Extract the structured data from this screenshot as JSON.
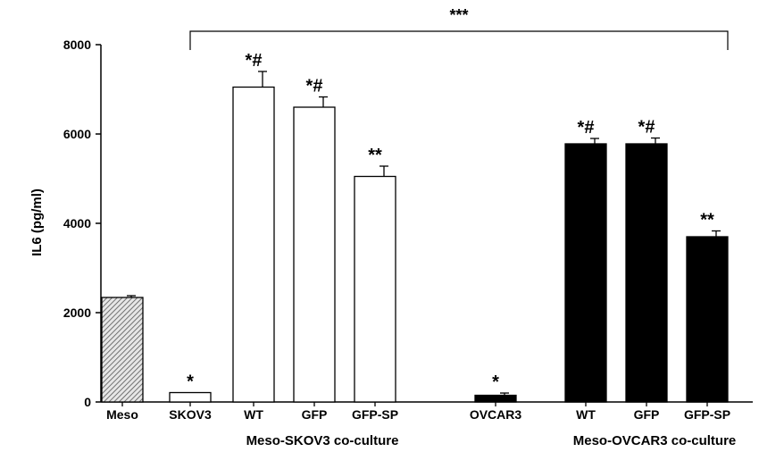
{
  "chart_data": {
    "type": "bar",
    "ylabel": "IL6 (pg/ml)",
    "xlabel": "",
    "ylim": [
      0,
      8000
    ],
    "yticks": [
      0,
      2000,
      4000,
      6000,
      8000
    ],
    "grid": false,
    "bars": [
      {
        "label": "Meso",
        "value": 2340,
        "error": 40,
        "style": "hatched",
        "annotation": ""
      },
      {
        "label": "SKOV3",
        "value": 210,
        "error": 0,
        "style": "white",
        "annotation": "*"
      },
      {
        "label": "WT",
        "value": 7050,
        "error": 350,
        "style": "white",
        "annotation": "*#"
      },
      {
        "label": "GFP",
        "value": 6600,
        "error": 230,
        "style": "white",
        "annotation": "*#"
      },
      {
        "label": "GFP-SP",
        "value": 5050,
        "error": 230,
        "style": "white",
        "annotation": "**"
      },
      {
        "label": "OVCAR3",
        "value": 150,
        "error": 50,
        "style": "black",
        "annotation": "*"
      },
      {
        "label": "WT",
        "value": 5780,
        "error": 120,
        "style": "black",
        "annotation": "*#"
      },
      {
        "label": "GFP",
        "value": 5780,
        "error": 130,
        "style": "black",
        "annotation": "*#"
      },
      {
        "label": "GFP-SP",
        "value": 3700,
        "error": 130,
        "style": "black",
        "annotation": "**"
      }
    ],
    "groups": [
      {
        "label": "Meso-SKOV3 co-culture",
        "bars": [
          2,
          3,
          4
        ]
      },
      {
        "label": "Meso-OVCAR3 co-culture",
        "bars": [
          6,
          7,
          8
        ]
      }
    ],
    "significance": {
      "label": "***",
      "from_bar": 1,
      "to_bar": 8
    }
  }
}
